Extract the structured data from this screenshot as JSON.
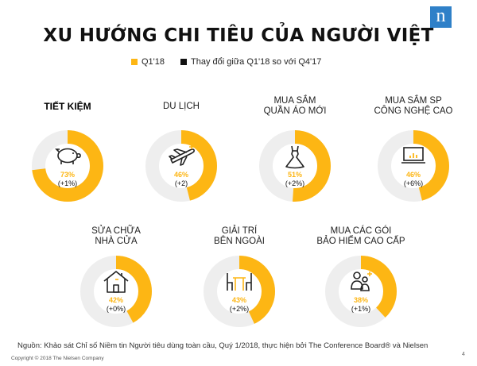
{
  "brand": {
    "logo_letter": "n",
    "logo_color": "#2f80c8"
  },
  "chart_data": {
    "type": "pie",
    "title": "XU HƯỚNG CHI TIÊU CỦA NGƯỜI VIỆT",
    "legend": [
      {
        "label": "Q1'18",
        "color": "#fdb614"
      },
      {
        "label": "Thay đổi giữa Q1'18 so với Q4'17",
        "color": "#111111"
      }
    ],
    "colors": {
      "value": "#fdb614",
      "remainder": "#eeeeee"
    },
    "series": [
      {
        "name": "Q1'18",
        "categories": [
          "TIẾT KIỆM",
          "DU LỊCH",
          "MUA SẮM QUẦN ÁO MỚI",
          "MUA SẮM SP CÔNG NGHỆ CAO",
          "SỬA CHỮA NHÀ CỬA",
          "GIẢI TRÍ BÊN NGOÀI",
          "MUA CÁC GÓI BẢO HIỂM CAO CẤP"
        ],
        "values": [
          73,
          46,
          51,
          46,
          42,
          43,
          38
        ]
      },
      {
        "name": "Thay đổi giữa Q1'18 so với Q4'17",
        "values": [
          1,
          2,
          2,
          6,
          0,
          2,
          1
        ]
      }
    ],
    "items": [
      {
        "label": "TIẾT KIỆM",
        "bold": true,
        "value": 73,
        "value_text": "73%",
        "change_text": "(+1%)",
        "icon": "piggy-bank-icon"
      },
      {
        "label": "DU LỊCH",
        "bold": false,
        "value": 46,
        "value_text": "46%",
        "change_text": "(+2)",
        "icon": "airplane-icon"
      },
      {
        "label": "MUA SẮM\nQUẦN ÁO MỚI",
        "bold": false,
        "value": 51,
        "value_text": "51%",
        "change_text": "(+2%)",
        "icon": "dress-icon"
      },
      {
        "label": "MUA SẮM SP\nCÔNG NGHỆ CAO",
        "bold": false,
        "value": 46,
        "value_text": "46%",
        "change_text": "(+6%)",
        "icon": "laptop-icon"
      },
      {
        "label": "SỬA CHỮA\nNHÀ CỬA",
        "bold": false,
        "value": 42,
        "value_text": "42%",
        "change_text": "(+0%)",
        "icon": "house-icon"
      },
      {
        "label": "GIẢI TRÍ\nBÊN NGOÀI",
        "bold": false,
        "value": 43,
        "value_text": "43%",
        "change_text": "(+2%)",
        "icon": "table-chairs-icon"
      },
      {
        "label": "MUA CÁC GÓI\nBẢO HIỂM CAO CẤP",
        "bold": false,
        "value": 38,
        "value_text": "38%",
        "change_text": "(+1%)",
        "icon": "family-plus-icon"
      }
    ]
  },
  "footer": {
    "source": "Nguồn: Khảo sát Chỉ số Niềm tin Người tiêu dùng toàn cầu, Quý 1/2018, thực hiện bởi The Conference Board® và Nielsen",
    "copyright": "Copyright © 2018 The Nielsen Company",
    "page_number": "4"
  }
}
